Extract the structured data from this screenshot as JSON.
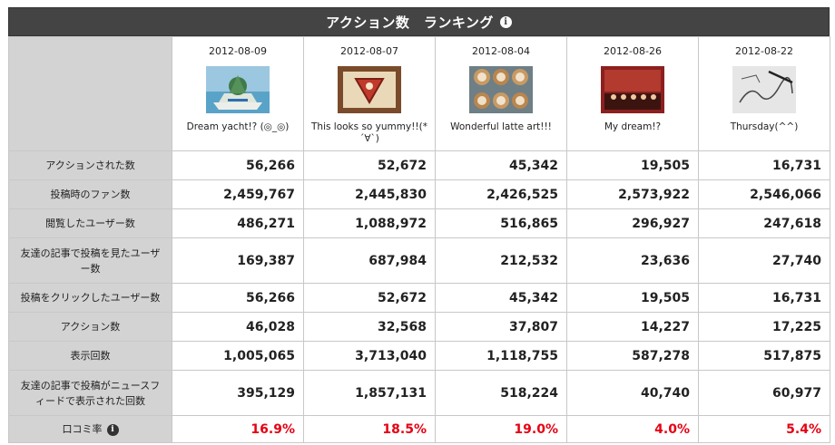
{
  "title": "アクション数　ランキング",
  "posts": [
    {
      "date": "2012-08-09",
      "caption": "Dream yacht!? (◎_◎)",
      "thumb_icon": "yacht-photo-icon"
    },
    {
      "date": "2012-08-07",
      "caption": "This looks so yummy!!(*´∀`)",
      "thumb_icon": "food-photo-icon"
    },
    {
      "date": "2012-08-04",
      "caption": "Wonderful latte art!!!",
      "thumb_icon": "latte-photo-icon"
    },
    {
      "date": "2012-08-26",
      "caption": "My dream!?",
      "thumb_icon": "stage-photo-icon"
    },
    {
      "date": "2012-08-22",
      "caption": "Thursday(^^)",
      "thumb_icon": "sketch-photo-icon"
    }
  ],
  "rows": [
    {
      "label": "アクションされた数",
      "values": [
        "56,266",
        "52,672",
        "45,342",
        "19,505",
        "16,731"
      ]
    },
    {
      "label": "投稿時のファン数",
      "values": [
        "2,459,767",
        "2,445,830",
        "2,426,525",
        "2,573,922",
        "2,546,066"
      ]
    },
    {
      "label": "閲覧したユーザー数",
      "values": [
        "486,271",
        "1,088,972",
        "516,865",
        "296,927",
        "247,618"
      ]
    },
    {
      "label": "友達の記事で投稿を見たユーザー数",
      "values": [
        "169,387",
        "687,984",
        "212,532",
        "23,636",
        "27,740"
      ]
    },
    {
      "label": "投稿をクリックしたユーザー数",
      "values": [
        "56,266",
        "52,672",
        "45,342",
        "19,505",
        "16,731"
      ]
    },
    {
      "label": "アクション数",
      "values": [
        "46,028",
        "32,568",
        "37,807",
        "14,227",
        "17,225"
      ]
    },
    {
      "label": "表示回数",
      "values": [
        "1,005,065",
        "3,713,040",
        "1,118,755",
        "587,278",
        "517,875"
      ]
    },
    {
      "label": "友達の記事で投稿がニュースフィードで表示された回数",
      "values": [
        "395,129",
        "1,857,131",
        "518,224",
        "40,740",
        "60,977"
      ]
    },
    {
      "label": "口コミ率",
      "values": [
        "16.9%",
        "18.5%",
        "19.0%",
        "4.0%",
        "5.4%"
      ]
    }
  ],
  "colors": {
    "header_bg": "#444444",
    "label_bg": "#d3d3d3",
    "rate_red": "#e60012"
  }
}
